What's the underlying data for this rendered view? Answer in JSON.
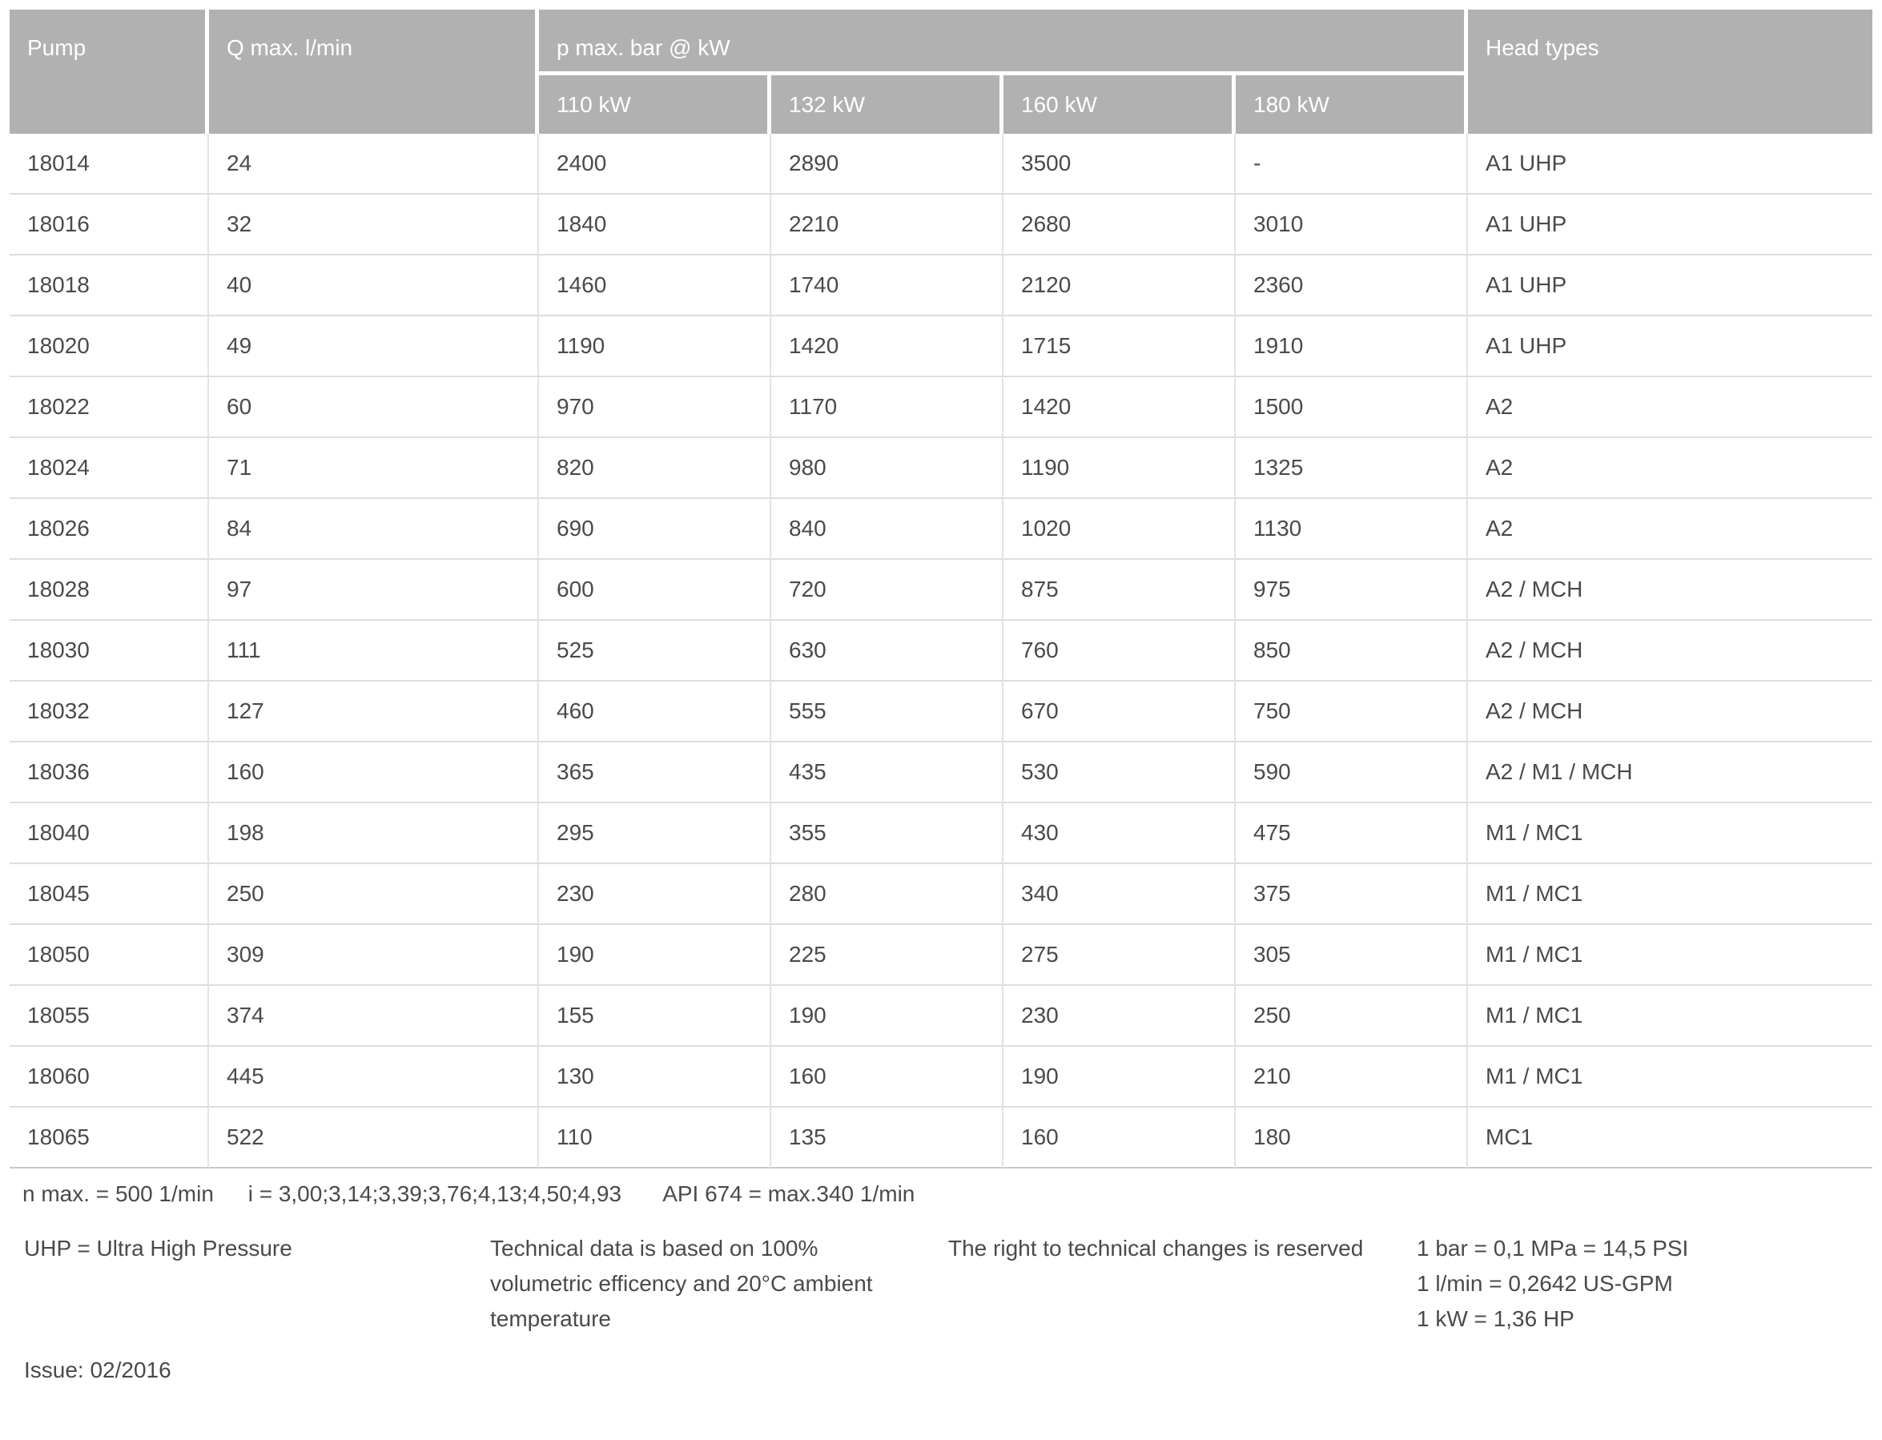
{
  "table": {
    "header": {
      "pump": "Pump",
      "qmax": "Q max. l/min",
      "pmax_group": "p max. bar @ kW",
      "kw_columns": [
        "110 kW",
        "132 kW",
        "160 kW",
        "180 kW"
      ],
      "head_types": "Head types"
    },
    "rows": [
      {
        "pump": "18014",
        "qmax": "24",
        "kw": [
          "2400",
          "2890",
          "3500",
          "-"
        ],
        "head": "A1 UHP"
      },
      {
        "pump": "18016",
        "qmax": "32",
        "kw": [
          "1840",
          "2210",
          "2680",
          "3010"
        ],
        "head": "A1 UHP"
      },
      {
        "pump": "18018",
        "qmax": "40",
        "kw": [
          "1460",
          "1740",
          "2120",
          "2360"
        ],
        "head": "A1 UHP"
      },
      {
        "pump": "18020",
        "qmax": "49",
        "kw": [
          "1190",
          "1420",
          "1715",
          "1910"
        ],
        "head": "A1 UHP"
      },
      {
        "pump": "18022",
        "qmax": "60",
        "kw": [
          "970",
          "1170",
          "1420",
          "1500"
        ],
        "head": "A2"
      },
      {
        "pump": "18024",
        "qmax": "71",
        "kw": [
          "820",
          "980",
          "1190",
          "1325"
        ],
        "head": "A2"
      },
      {
        "pump": "18026",
        "qmax": "84",
        "kw": [
          "690",
          "840",
          "1020",
          "1130"
        ],
        "head": "A2"
      },
      {
        "pump": "18028",
        "qmax": "97",
        "kw": [
          "600",
          "720",
          "875",
          "975"
        ],
        "head": "A2 / MCH"
      },
      {
        "pump": "18030",
        "qmax": "111",
        "kw": [
          "525",
          "630",
          "760",
          "850"
        ],
        "head": "A2 / MCH"
      },
      {
        "pump": "18032",
        "qmax": "127",
        "kw": [
          "460",
          "555",
          "670",
          "750"
        ],
        "head": "A2 / MCH"
      },
      {
        "pump": "18036",
        "qmax": "160",
        "kw": [
          "365",
          "435",
          "530",
          "590"
        ],
        "head": "A2 / M1 / MCH"
      },
      {
        "pump": "18040",
        "qmax": "198",
        "kw": [
          "295",
          "355",
          "430",
          "475"
        ],
        "head": "M1 / MC1"
      },
      {
        "pump": "18045",
        "qmax": "250",
        "kw": [
          "230",
          "280",
          "340",
          "375"
        ],
        "head": "M1 / MC1"
      },
      {
        "pump": "18050",
        "qmax": "309",
        "kw": [
          "190",
          "225",
          "275",
          "305"
        ],
        "head": "M1 / MC1"
      },
      {
        "pump": "18055",
        "qmax": "374",
        "kw": [
          "155",
          "190",
          "230",
          "250"
        ],
        "head": "M1 / MC1"
      },
      {
        "pump": "18060",
        "qmax": "445",
        "kw": [
          "130",
          "160",
          "190",
          "210"
        ],
        "head": "M1 / MC1"
      },
      {
        "pump": "18065",
        "qmax": "522",
        "kw": [
          "110",
          "135",
          "160",
          "180"
        ],
        "head": "MC1"
      }
    ]
  },
  "footnotes": {
    "line1": [
      "n max. = 500 1/min",
      "i = 3,00;3,14;3,39;3,76;4,13;4,50;4,93",
      "API 674 = max.340 1/min"
    ],
    "uhp": "UHP = Ultra High Pressure",
    "technical": "Technical data is based on 100% volumetric efficency and 20°C ambient temperature",
    "rights": "The right to technical changes is reserved",
    "conversions": [
      "1 bar = 0,1 MPa = 14,5 PSI",
      "1 l/min = 0,2642 US-GPM",
      "1 kW = 1,36 HP"
    ],
    "issue": "Issue: 02/2016"
  },
  "colors": {
    "header_bg": "#b1b1b1",
    "header_text": "#ffffff",
    "body_text": "#4a4a4a",
    "row_border": "#dddddd"
  }
}
